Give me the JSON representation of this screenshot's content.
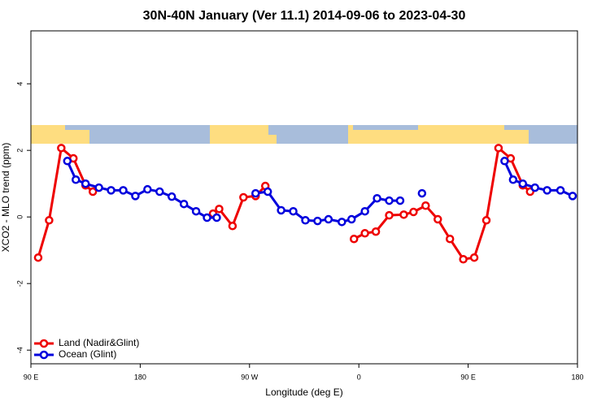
{
  "chart_data": {
    "type": "line",
    "title": "30N-40N January (Ver 11.1)   2014-09-06 to 2023-04-30",
    "xlabel": "Longitude (deg E)",
    "ylabel": "XCO2 - MLO trend (ppm)",
    "xlim": [
      90,
      540
    ],
    "ylim": [
      -4.41,
      5.59
    ],
    "xticks": [
      {
        "value": 90,
        "label": "90 E"
      },
      {
        "value": 180,
        "label": "180"
      },
      {
        "value": 270,
        "label": "90 W"
      },
      {
        "value": 360,
        "label": "0"
      },
      {
        "value": 450,
        "label": "90 E"
      },
      {
        "value": 540,
        "label": "180"
      }
    ],
    "yticks": [
      -4,
      -2,
      0,
      2,
      4
    ],
    "legend": "bottom-left",
    "series": [
      {
        "name": "Land (Nadir&Glint)",
        "color": "#ee0000",
        "x": [
          96,
          105,
          115,
          125,
          135,
          141,
          null,
          240,
          245,
          256,
          265,
          275,
          283,
          null,
          356,
          365,
          374,
          385,
          397,
          405,
          415,
          425,
          435,
          446,
          455,
          465,
          475,
          485,
          495,
          501
        ],
        "values": [
          -1.22,
          -0.1,
          2.07,
          1.76,
          0.95,
          0.76,
          null,
          0.1,
          0.24,
          -0.27,
          0.59,
          0.63,
          0.93,
          null,
          -0.66,
          -0.49,
          -0.44,
          0.05,
          0.07,
          0.15,
          0.34,
          -0.07,
          -0.66,
          -1.27,
          -1.22,
          -0.1,
          2.07,
          1.76,
          0.95,
          0.76
        ]
      },
      {
        "name": "Ocean (Glint)",
        "color": "#0000dd",
        "x": [
          120,
          127,
          135,
          146,
          156,
          166,
          176,
          186,
          196,
          206,
          216,
          226,
          235,
          243,
          null,
          275,
          285,
          296,
          306,
          316,
          326,
          335,
          346,
          354,
          365,
          375,
          385,
          394,
          null,
          412,
          null,
          480,
          487,
          495,
          505,
          515,
          526,
          536
        ],
        "values": [
          1.68,
          1.12,
          1.0,
          0.88,
          0.8,
          0.8,
          0.63,
          0.83,
          0.76,
          0.61,
          0.39,
          0.17,
          -0.02,
          -0.02,
          null,
          0.71,
          0.76,
          0.2,
          0.17,
          -0.1,
          -0.12,
          -0.07,
          -0.15,
          -0.07,
          0.17,
          0.56,
          0.49,
          0.49,
          null,
          0.71,
          null,
          1.68,
          1.12,
          1.0,
          0.88,
          0.8,
          0.8,
          0.63
        ]
      }
    ]
  }
}
